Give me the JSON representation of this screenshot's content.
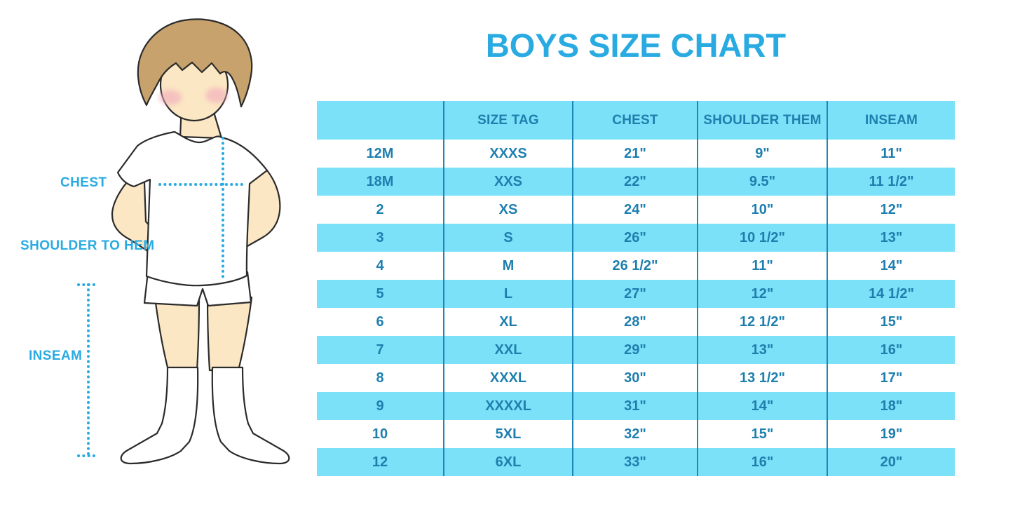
{
  "title": "BOYS SIZE CHART",
  "colors": {
    "title": "#29ABE2",
    "table_stripe": "#7BE1F8",
    "table_text": "#1E7FAE",
    "column_divider": "#1F87B8",
    "dotted_line": "#29ABE2",
    "skin": "#FBE7C3",
    "hair": "#C7A26D",
    "blush": "#F2A9BE"
  },
  "figure": {
    "chest_label": "CHEST",
    "shoulder_to_hem_label": "SHOULDER TO HEM",
    "inseam_label": "INSEAM"
  },
  "chart_data": {
    "type": "table",
    "title": "BOYS SIZE CHART",
    "columns": [
      "",
      "SIZE TAG",
      "CHEST",
      "SHOULDER THEM",
      "INSEAM"
    ],
    "rows": [
      [
        "12M",
        "XXXS",
        "21\"",
        "9\"",
        "11\""
      ],
      [
        "18M",
        "XXS",
        "22\"",
        "9.5\"",
        "11 1/2\""
      ],
      [
        "2",
        "XS",
        "24\"",
        "10\"",
        "12\""
      ],
      [
        "3",
        "S",
        "26\"",
        "10 1/2\"",
        "13\""
      ],
      [
        "4",
        "M",
        "26 1/2\"",
        "11\"",
        "14\""
      ],
      [
        "5",
        "L",
        "27\"",
        "12\"",
        "14 1/2\""
      ],
      [
        "6",
        "XL",
        "28\"",
        "12 1/2\"",
        "15\""
      ],
      [
        "7",
        "XXL",
        "29\"",
        "13\"",
        "16\""
      ],
      [
        "8",
        "XXXL",
        "30\"",
        "13 1/2\"",
        "17\""
      ],
      [
        "9",
        "XXXXL",
        "31\"",
        "14\"",
        "18\""
      ],
      [
        "10",
        "5XL",
        "32\"",
        "15\"",
        "19\""
      ],
      [
        "12",
        "6XL",
        "33\"",
        "16\"",
        "20\""
      ]
    ]
  }
}
